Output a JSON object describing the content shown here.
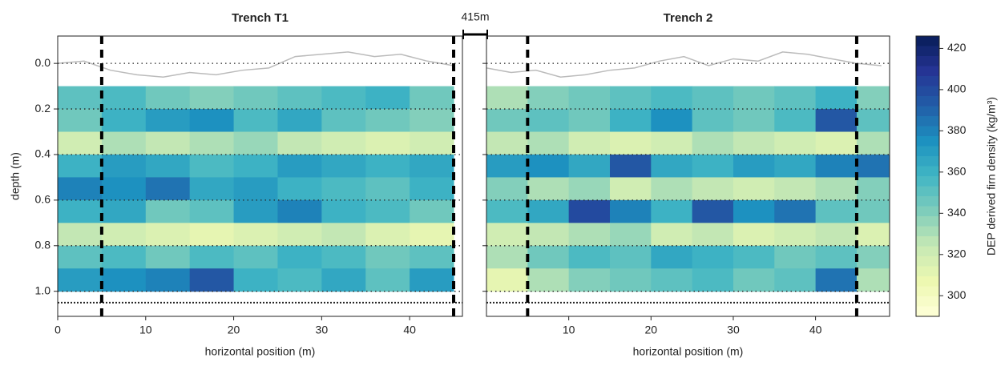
{
  "chart_data": [
    {
      "type": "heatmap",
      "title": "Trench T1",
      "xlabel": "horizontal position (m)",
      "ylabel": "depth (m)",
      "xlim": [
        0,
        46
      ],
      "ylim": [
        -0.12,
        1.11
      ],
      "xticks": [
        0,
        10,
        20,
        30,
        40
      ],
      "yticks": [
        {
          "value": 0,
          "label": "0.0"
        },
        {
          "value": 0.2,
          "label": "0.2"
        },
        {
          "value": 0.4,
          "label": "0.4"
        },
        {
          "value": 0.6,
          "label": "0.6"
        },
        {
          "value": 0.8,
          "label": "0.8"
        },
        {
          "value": 1,
          "label": "1.0"
        }
      ],
      "show_ytick_labels": true,
      "grid": true,
      "vlines": [
        5,
        45
      ],
      "hlines": [
        1.05
      ],
      "x": [
        2.5,
        7.5,
        12.5,
        17.5,
        22.5,
        27.5,
        32.5,
        37.5,
        42.5
      ],
      "y": [
        0.15,
        0.25,
        0.35,
        0.45,
        0.55,
        0.65,
        0.75,
        0.85,
        0.95
      ],
      "z": [
        [
          350,
          355,
          345,
          340,
          345,
          350,
          355,
          360,
          345
        ],
        [
          345,
          360,
          370,
          375,
          355,
          365,
          350,
          345,
          340
        ],
        [
          320,
          330,
          325,
          330,
          335,
          325,
          320,
          315,
          320
        ],
        [
          360,
          370,
          365,
          355,
          360,
          370,
          365,
          360,
          365
        ],
        [
          380,
          375,
          385,
          365,
          370,
          360,
          355,
          350,
          360
        ],
        [
          360,
          365,
          345,
          350,
          370,
          380,
          360,
          355,
          345
        ],
        [
          325,
          320,
          315,
          310,
          315,
          320,
          325,
          315,
          310
        ],
        [
          350,
          355,
          345,
          355,
          350,
          360,
          355,
          345,
          350
        ],
        [
          370,
          375,
          380,
          395,
          360,
          355,
          365,
          350,
          370
        ]
      ],
      "surface": {
        "color": "#bbbbbb",
        "x": [
          0,
          3,
          6,
          9,
          12,
          15,
          18,
          21,
          24,
          27,
          30,
          33,
          36,
          39,
          42,
          45
        ],
        "values": [
          0,
          -0.01,
          0.03,
          0.05,
          0.06,
          0.04,
          0.05,
          0.03,
          0.02,
          -0.03,
          -0.04,
          -0.05,
          -0.03,
          -0.04,
          -0.01,
          0.01
        ]
      }
    },
    {
      "type": "heatmap",
      "title": "Trench 2",
      "xlabel": "horizontal position (m)",
      "xlim": [
        0,
        49
      ],
      "ylim": [
        -0.12,
        1.11
      ],
      "xticks": [
        10,
        20,
        30,
        40
      ],
      "yticks": [
        0,
        0.2,
        0.4,
        0.6,
        0.8,
        1
      ],
      "show_ytick_labels": false,
      "grid": true,
      "vlines": [
        5,
        45
      ],
      "hlines": [
        1.05
      ],
      "x": [
        2.5,
        7.5,
        12.5,
        17.5,
        22.5,
        27.5,
        32.5,
        37.5,
        42.5,
        47.5
      ],
      "y": [
        0.15,
        0.25,
        0.35,
        0.45,
        0.55,
        0.65,
        0.75,
        0.85,
        0.95
      ],
      "z": [
        [
          330,
          340,
          345,
          350,
          355,
          350,
          345,
          350,
          360,
          340
        ],
        [
          345,
          350,
          345,
          360,
          375,
          350,
          345,
          355,
          395,
          350
        ],
        [
          325,
          330,
          320,
          315,
          320,
          330,
          325,
          320,
          315,
          330
        ],
        [
          370,
          375,
          365,
          395,
          365,
          360,
          370,
          365,
          380,
          385
        ],
        [
          340,
          330,
          335,
          320,
          330,
          325,
          320,
          325,
          330,
          340
        ],
        [
          355,
          365,
          400,
          380,
          360,
          395,
          375,
          385,
          350,
          345
        ],
        [
          320,
          325,
          330,
          335,
          320,
          325,
          315,
          320,
          325,
          315
        ],
        [
          330,
          345,
          355,
          350,
          365,
          360,
          355,
          345,
          350,
          340
        ],
        [
          310,
          330,
          340,
          345,
          350,
          355,
          345,
          350,
          385,
          330
        ]
      ],
      "surface": {
        "color": "#bbbbbb",
        "x": [
          0,
          3,
          6,
          9,
          12,
          15,
          18,
          21,
          24,
          27,
          30,
          33,
          36,
          39,
          42,
          45,
          48
        ],
        "values": [
          0.02,
          0.04,
          0.03,
          0.06,
          0.05,
          0.03,
          0.02,
          -0.01,
          -0.03,
          0.01,
          -0.02,
          -0.01,
          -0.05,
          -0.04,
          -0.02,
          0.0,
          0.01
        ]
      }
    }
  ],
  "colorbar": {
    "label": "DEP derived firn density (kg/m³)",
    "lim": [
      290,
      426
    ],
    "ticks": [
      300,
      320,
      340,
      360,
      380,
      400,
      420
    ],
    "colormap": [
      "#ffffd9",
      "#edf8b1",
      "#c7e9b4",
      "#7fcdbb",
      "#41b6c4",
      "#1d91c0",
      "#225ea8",
      "#253494",
      "#081d58"
    ]
  },
  "scale_bar": {
    "label": "415m"
  }
}
